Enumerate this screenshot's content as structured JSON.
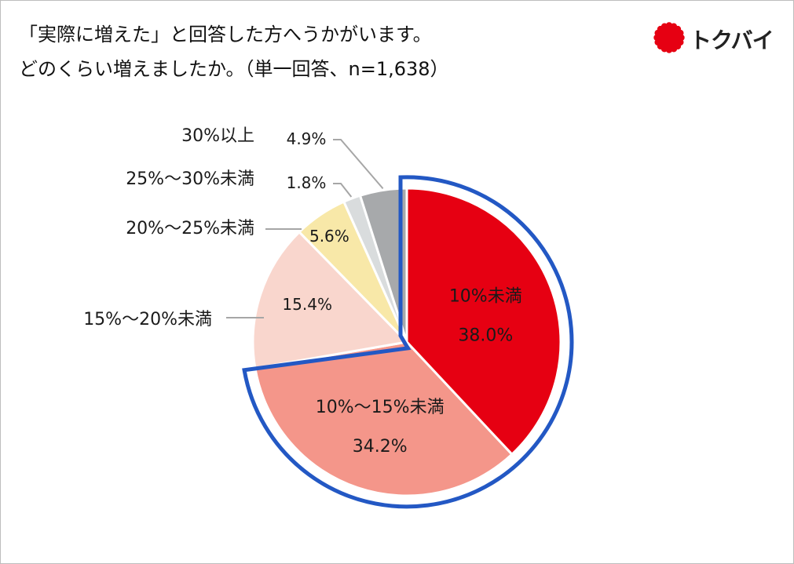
{
  "title": {
    "line1": "「実際に増えた」と回答した方へうかがいます。",
    "line2": "どのくらい増えましたか。（単一回答、n=1,638）"
  },
  "logo": {
    "text": "トクバイ",
    "icon": "red-sun-icon",
    "color": "#e60012"
  },
  "colors": {
    "highlight": "#2358c4",
    "leader": "#a6a6a6"
  },
  "chart_data": {
    "type": "pie",
    "title": "「実際に増えた」と回答した方へうかがいます。どのくらい増えましたか。（単一回答、n=1,638）",
    "start": "12 o'clock, clockwise",
    "highlighted_segments": [
      "10%未満",
      "10%〜15%未満"
    ],
    "slices": [
      {
        "label": "10%未満",
        "value": 38.0,
        "value_label": "38.0%",
        "color": "#e60012"
      },
      {
        "label": "10%〜15%未満",
        "value": 34.2,
        "value_label": "34.2%",
        "color": "#f4968a"
      },
      {
        "label": "15%〜20%未満",
        "value": 15.4,
        "value_label": "15.4%",
        "color": "#f9d6cd"
      },
      {
        "label": "20%〜25%未満",
        "value": 5.6,
        "value_label": "5.6%",
        "color": "#f8e8a8"
      },
      {
        "label": "25%〜30%未満",
        "value": 1.8,
        "value_label": "1.8%",
        "color": "#d9dcdd"
      },
      {
        "label": "30%以上",
        "value": 4.9,
        "value_label": "4.9%",
        "color": "#a7a9ab"
      }
    ]
  }
}
